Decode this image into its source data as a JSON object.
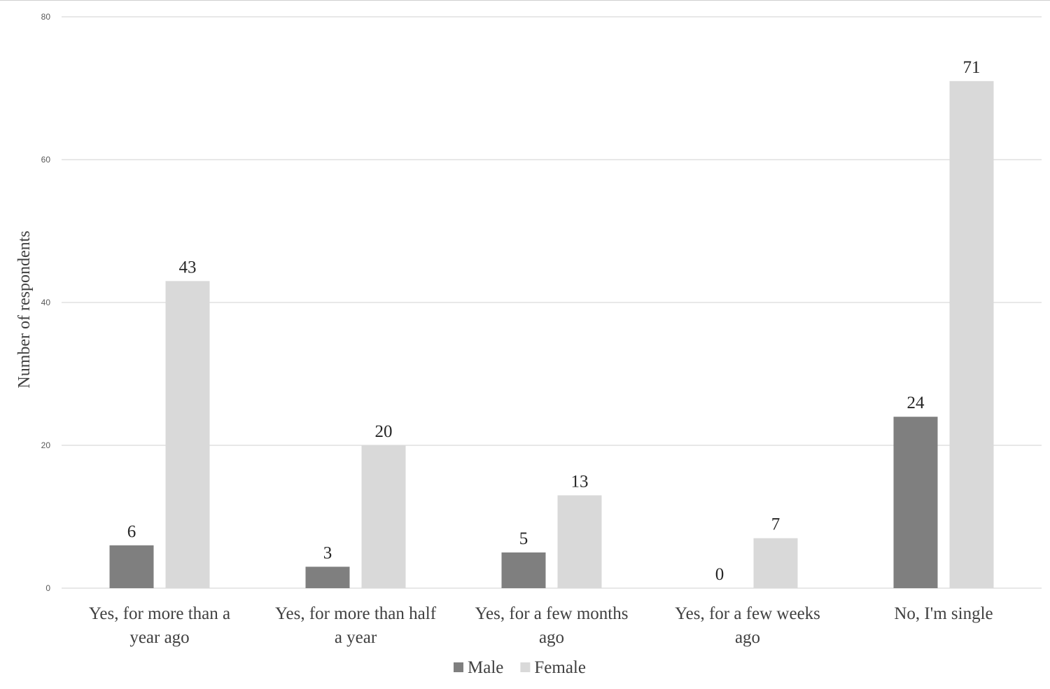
{
  "chart_data": {
    "type": "bar",
    "categories": [
      [
        "Yes, for more than a",
        "year ago"
      ],
      [
        "Yes, for more than half",
        "a year"
      ],
      [
        "Yes, for a few months",
        "ago"
      ],
      [
        "Yes, for a few weeks",
        "ago"
      ],
      [
        "No, I'm single"
      ]
    ],
    "series": [
      {
        "name": "Male",
        "values": [
          6,
          3,
          5,
          0,
          24
        ],
        "color": "#7f7f7f"
      },
      {
        "name": "Female",
        "values": [
          43,
          20,
          13,
          7,
          71
        ],
        "color": "#d9d9d9"
      }
    ],
    "ylabel": "Number of respondents",
    "xlabel": "",
    "ylim": [
      0,
      80
    ],
    "yticks": [
      0,
      20,
      40,
      60,
      80
    ],
    "grid": true,
    "legend": "bottom-center",
    "data_labels": true
  }
}
